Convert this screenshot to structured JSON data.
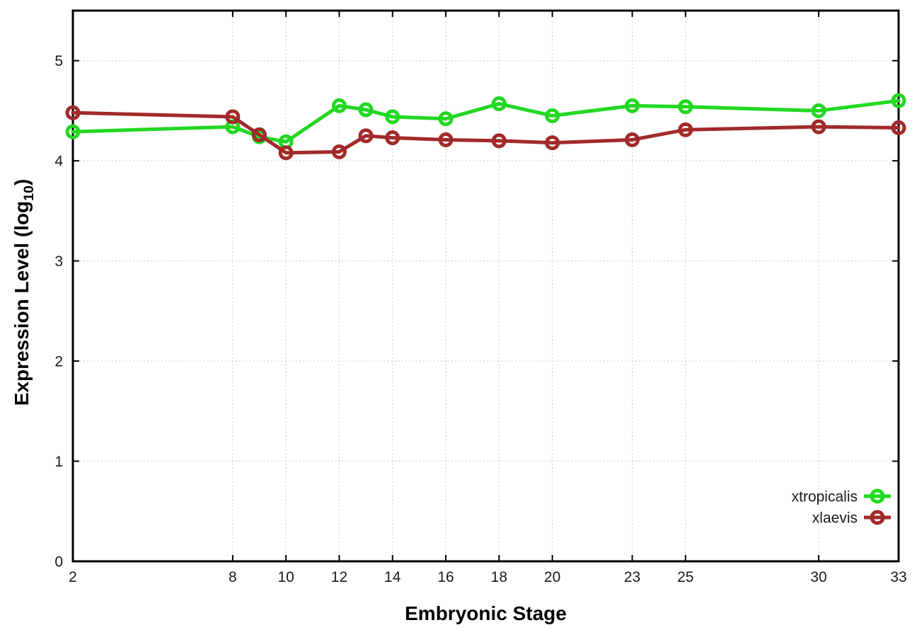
{
  "figure": {
    "background": "#ffffff",
    "frame_color": "#000000",
    "grid_color": "#bdbdbd",
    "text_color": "#1a1a1a"
  },
  "chart_data": {
    "type": "line",
    "title": "",
    "xlabel": "Embryonic Stage",
    "ylabel": "Expression Level (log10)",
    "ylabel_parts": {
      "prefix": "Expression Level (log",
      "sub": "10",
      "suffix": ")"
    },
    "x": [
      2,
      8,
      9,
      10,
      12,
      13,
      14,
      16,
      18,
      20,
      23,
      25,
      30,
      33
    ],
    "series": [
      {
        "name": "xtropicalis",
        "color": "#22d822",
        "marker": "open-circle",
        "values": [
          4.29,
          4.34,
          4.24,
          4.19,
          4.55,
          4.51,
          4.44,
          4.42,
          4.57,
          4.45,
          4.55,
          4.54,
          4.5,
          4.6
        ]
      },
      {
        "name": "xlaevis",
        "color": "#a12a2a",
        "marker": "open-circle",
        "values": [
          4.48,
          4.44,
          4.26,
          4.08,
          4.09,
          4.25,
          4.23,
          4.21,
          4.2,
          4.18,
          4.21,
          4.31,
          4.34,
          4.33
        ]
      }
    ],
    "x_ticks": [
      2,
      8,
      10,
      12,
      14,
      16,
      18,
      20,
      23,
      25,
      30,
      33
    ],
    "y_ticks": [
      0,
      1,
      2,
      3,
      4,
      5
    ],
    "xlim": [
      2,
      33
    ],
    "ylim": [
      0,
      5.5
    ],
    "grid": true,
    "legend_position": "inside-right-lower",
    "legend_entries": [
      "xtropicalis",
      "xlaevis"
    ]
  }
}
